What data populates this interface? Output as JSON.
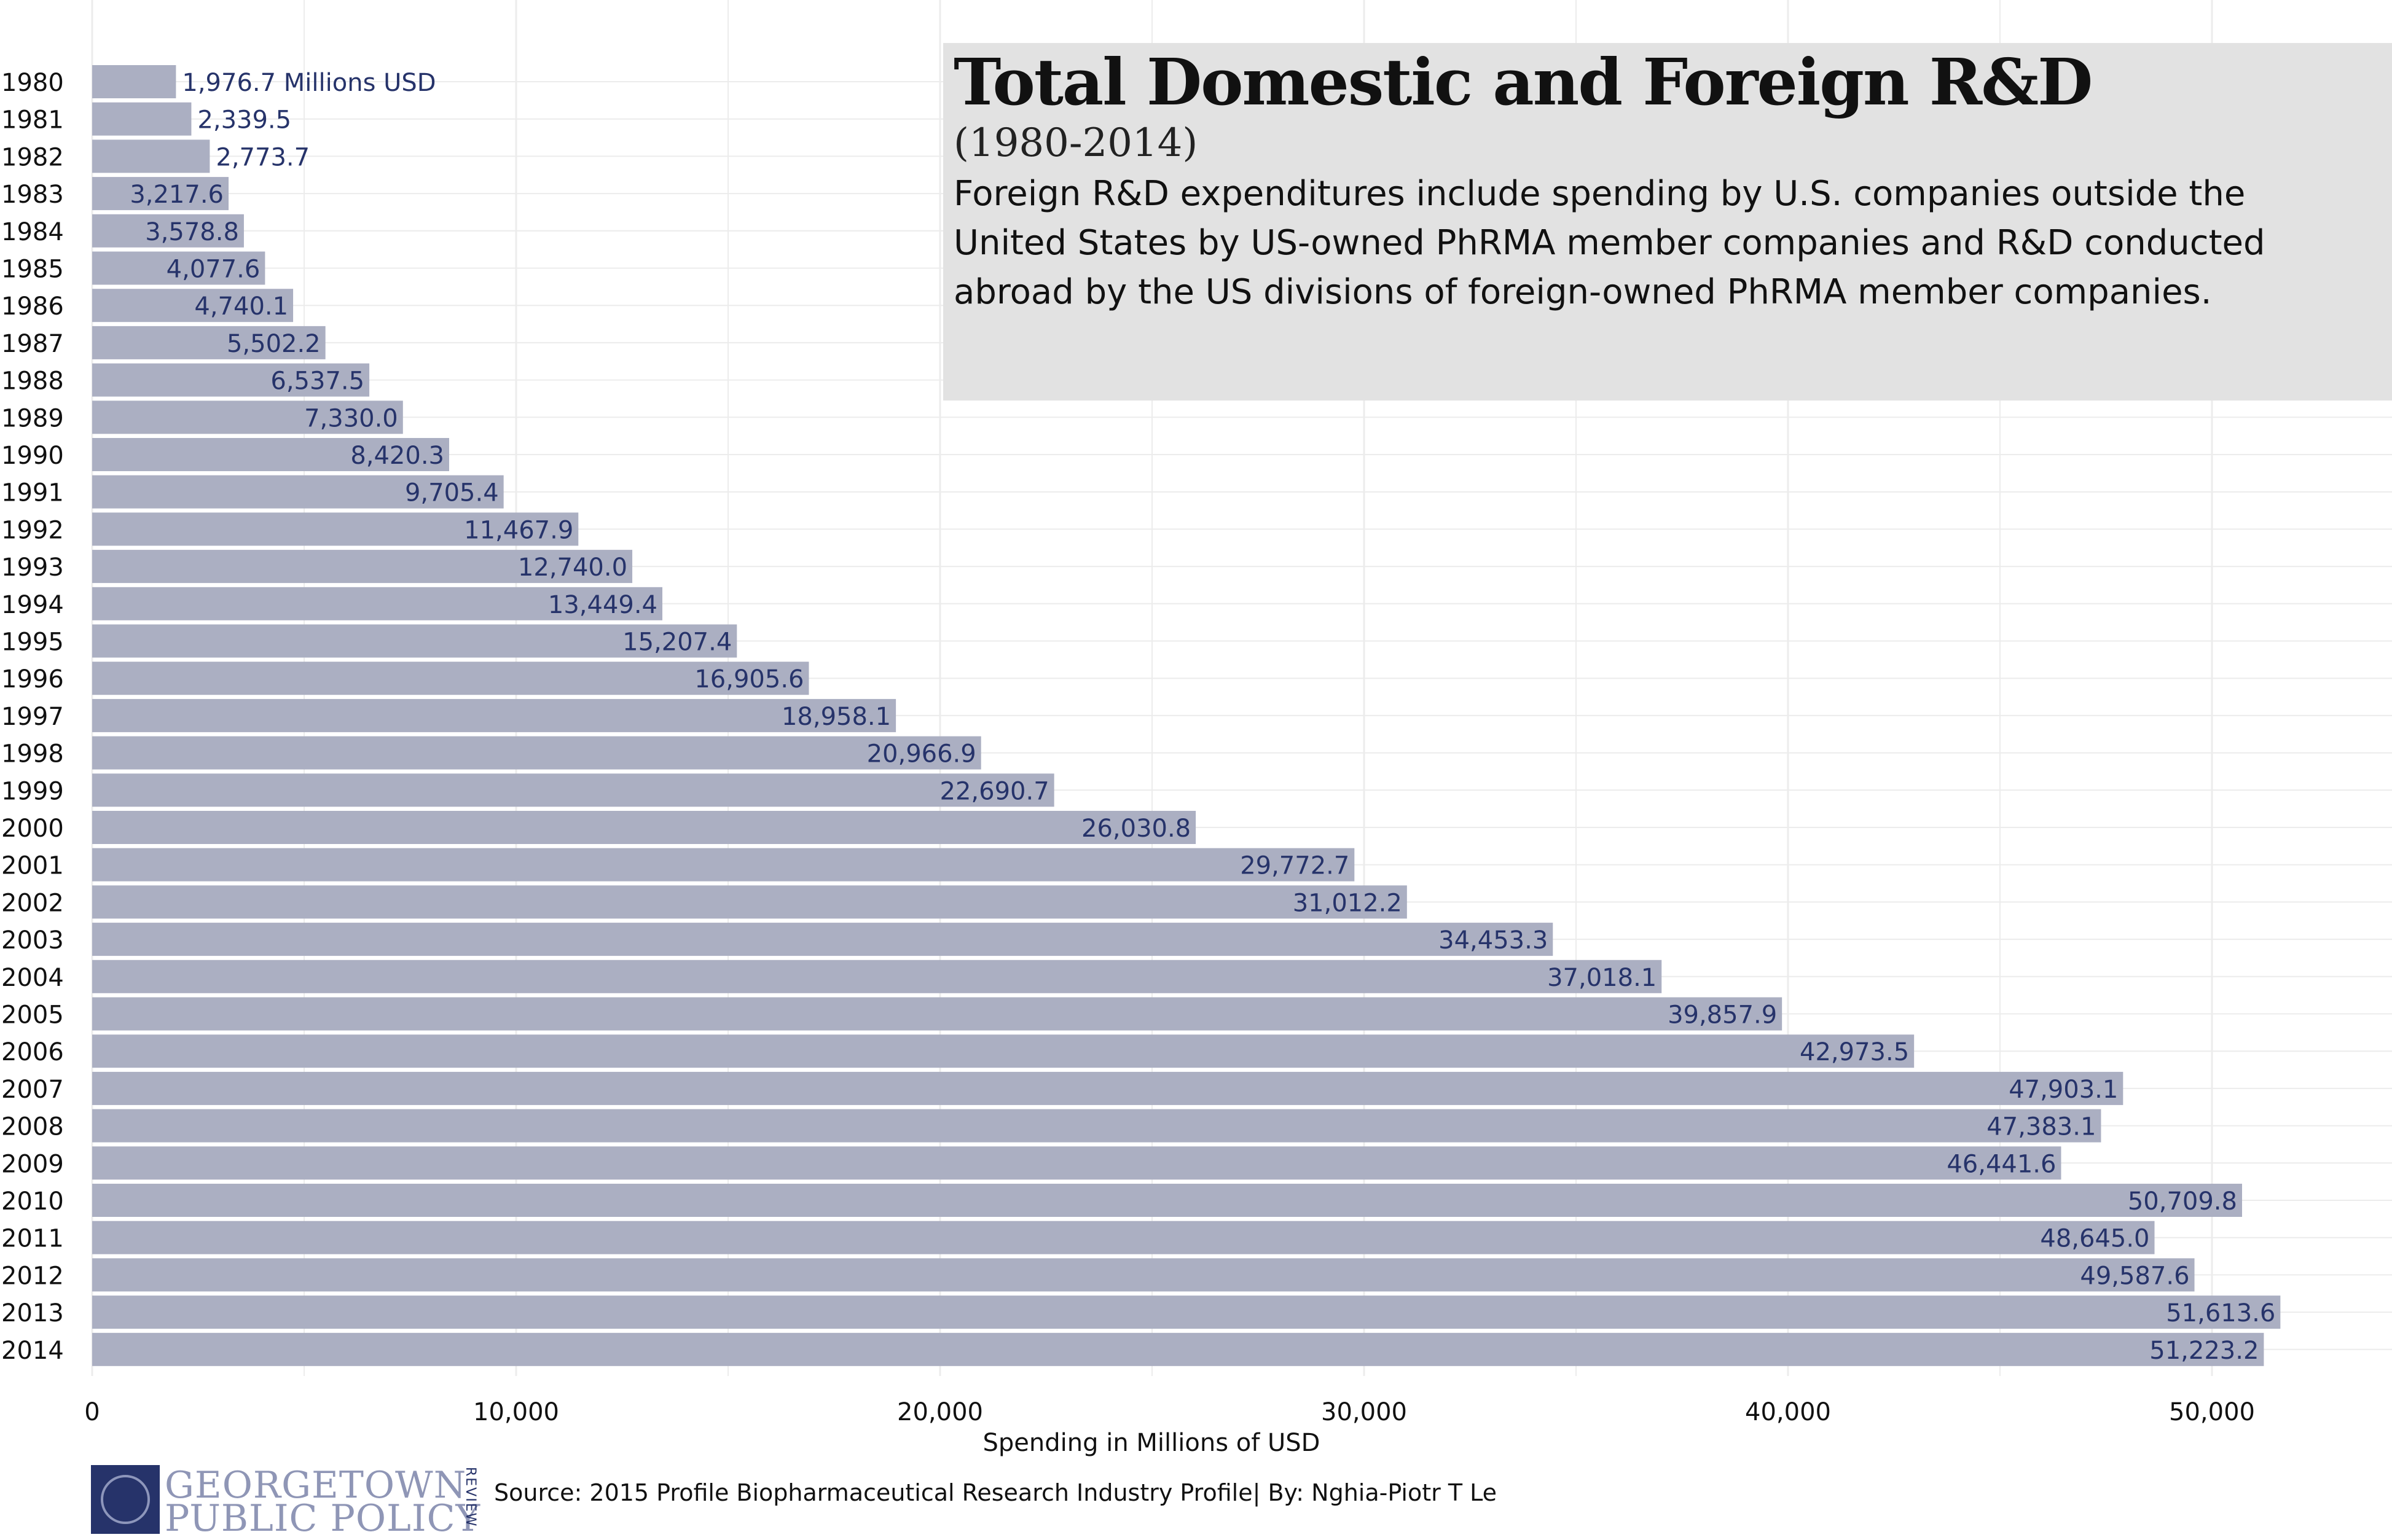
{
  "title": "Total Domestic and Foreign R&D",
  "subtitle": "(1980-2014)",
  "description": "Foreign R&D expenditures include spending by U.S. companies outside the United States by US-owned PhRMA member companies and R&D conducted abroad by the US divisions of foreign-owned PhRMA member companies.",
  "source": "Source: 2015 Profile Biopharmaceutical Research Industry Profile| By: Nghia-Piotr T Le",
  "logo": {
    "line1": "GEORGETOWN",
    "line2": "PUBLIC POLICY",
    "side": "REVIEW"
  },
  "colors": {
    "bar": "#abafc2",
    "label": "#26336a",
    "grid": "#ececec",
    "title_box": "#e2e2e2"
  },
  "chart_data": {
    "type": "bar",
    "orientation": "horizontal",
    "xlabel": "Spending in Millions of USD",
    "ylabel": "",
    "xlim": [
      0,
      54000
    ],
    "xticks": [
      0,
      10000,
      20000,
      30000,
      40000,
      50000
    ],
    "xtick_labels": [
      "0",
      "10,000",
      "20,000",
      "30,000",
      "40,000",
      "50,000"
    ],
    "grid": true,
    "categories": [
      "1980",
      "1981",
      "1982",
      "1983",
      "1984",
      "1985",
      "1986",
      "1987",
      "1988",
      "1989",
      "1990",
      "1991",
      "1992",
      "1993",
      "1994",
      "1995",
      "1996",
      "1997",
      "1998",
      "1999",
      "2000",
      "2001",
      "2002",
      "2003",
      "2004",
      "2005",
      "2006",
      "2007",
      "2008",
      "2009",
      "2010",
      "2011",
      "2012",
      "2013",
      "2014"
    ],
    "values": [
      1976.7,
      2339.5,
      2773.7,
      3217.6,
      3578.8,
      4077.6,
      4740.1,
      5502.2,
      6537.5,
      7330.0,
      8420.3,
      9705.4,
      11467.9,
      12740.0,
      13449.4,
      15207.4,
      16905.6,
      18958.1,
      20966.9,
      22690.7,
      26030.8,
      29772.7,
      31012.2,
      34453.3,
      37018.1,
      39857.9,
      42973.5,
      47903.1,
      47383.1,
      46441.6,
      50709.8,
      48645.0,
      49587.6,
      51613.6,
      51223.2
    ],
    "data_labels": [
      "1,976.7 Millions USD",
      "2,339.5",
      "2,773.7",
      "3,217.6",
      "3,578.8",
      "4,077.6",
      "4,740.1",
      "5,502.2",
      "6,537.5",
      "7,330.0",
      "8,420.3",
      "9,705.4",
      "11,467.9",
      "12,740.0",
      "13,449.4",
      "15,207.4",
      "16,905.6",
      "18,958.1",
      "20,966.9",
      "22,690.7",
      "26,030.8",
      "29,772.7",
      "31,012.2",
      "34,453.3",
      "37,018.1",
      "39,857.9",
      "42,973.5",
      "47,903.1",
      "47,383.1",
      "46,441.6",
      "50,709.8",
      "48,645.0",
      "49,587.6",
      "51,613.6",
      "51,223.2"
    ]
  }
}
